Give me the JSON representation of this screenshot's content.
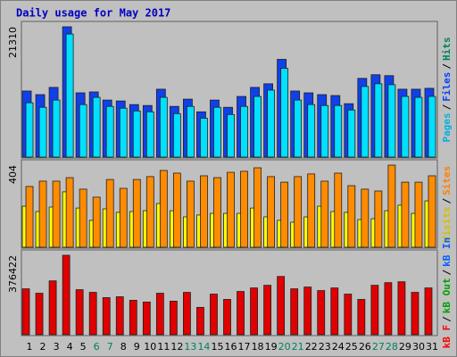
{
  "title": "Daily usage for May 2017",
  "chart_data": [
    {
      "type": "bar",
      "ylim": [
        0,
        21310
      ],
      "yticks": [
        21310
      ],
      "sep": "/",
      "legend": [
        {
          "text": "Pages",
          "color": "#00b0e0"
        },
        {
          "text": "Files",
          "color": "#0040ff"
        },
        {
          "text": "Hits",
          "color": "#008060"
        }
      ],
      "series": [
        {
          "color": "#1040e8",
          "values": [
            10876,
            10288,
            11464,
            21310,
            10582,
            10729,
            9406,
            9259,
            8671,
            8524,
            11170,
            8377,
            9553,
            7495,
            9406,
            8230,
            9994,
            11464,
            12051,
            16019,
            10876,
            10582,
            10288,
            10141,
            8818,
            12933,
            13521,
            13374,
            11170,
            11170,
            11317
          ]
        },
        {
          "color": "#00e0ff",
          "values": [
            8965,
            8230,
            9406,
            20134,
            8671,
            9847,
            8377,
            8083,
            7642,
            7495,
            9847,
            7201,
            8377,
            6467,
            8230,
            7054,
            8377,
            9994,
            11023,
            14550,
            9406,
            8671,
            8524,
            8524,
            7789,
            11610,
            12051,
            11904,
            9994,
            9847,
            9994
          ]
        }
      ]
    },
    {
      "type": "bar",
      "ylim": [
        0,
        404
      ],
      "yticks": [
        404
      ],
      "sep": "/",
      "legend": [
        {
          "text": "Visits",
          "color": "#d0c000"
        },
        {
          "text": "Sites",
          "color": "#ff8000"
        }
      ],
      "series": [
        {
          "color": "#ffff00",
          "values": [
            204,
            178,
            200,
            274,
            195,
            135,
            191,
            174,
            178,
            182,
            217,
            182,
            152,
            161,
            169,
            169,
            169,
            195,
            152,
            135,
            126,
            152,
            204,
            178,
            174,
            139,
            143,
            182,
            209,
            169,
            230
          ]
        },
        {
          "color": "#ff8c00",
          "values": [
            300,
            326,
            326,
            343,
            287,
            248,
            334,
            291,
            334,
            348,
            378,
            365,
            326,
            352,
            343,
            369,
            374,
            391,
            348,
            321,
            348,
            361,
            326,
            365,
            304,
            287,
            278,
            404,
            321,
            321,
            352
          ]
        }
      ]
    },
    {
      "type": "bar",
      "ylim": [
        0,
        376422
      ],
      "yticks": [
        376422
      ],
      "sep": "/",
      "legend": [
        {
          "text": "kB F",
          "color": "#ff0000"
        },
        {
          "text": "kB Out",
          "color": "#00a000"
        },
        {
          "text": "kB In",
          "color": "#0060ff"
        }
      ],
      "categories": [
        "1",
        "2",
        "3",
        "4",
        "5",
        "6",
        "7",
        "8",
        "9",
        "10",
        "11",
        "12",
        "13",
        "14",
        "15",
        "16",
        "17",
        "18",
        "19",
        "20",
        "21",
        "22",
        "23",
        "24",
        "25",
        "26",
        "27",
        "28",
        "29",
        "30",
        "31"
      ],
      "category_colors": [
        "#000000",
        "#000000",
        "#000000",
        "#000000",
        "#000000",
        "#008060",
        "#008060",
        "#000000",
        "#000000",
        "#000000",
        "#000000",
        "#000000",
        "#008060",
        "#008060",
        "#000000",
        "#000000",
        "#000000",
        "#000000",
        "#000000",
        "#008060",
        "#008060",
        "#000000",
        "#000000",
        "#000000",
        "#000000",
        "#000000",
        "#008060",
        "#008060",
        "#000000",
        "#000000",
        "#000000"
      ],
      "series": [
        {
          "color": "#e00000",
          "values": [
            219208,
            198528,
            256432,
            376422,
            215072,
            202664,
            177848,
            181984,
            165440,
            157168,
            198528,
            161304,
            202664,
            132352,
            194392,
            169576,
            206800,
            223344,
            235752,
            277112,
            219208,
            227480,
            210936,
            223344,
            194392,
            169576,
            235752,
            248160,
            252296,
            202664,
            223344
          ]
        }
      ]
    }
  ]
}
